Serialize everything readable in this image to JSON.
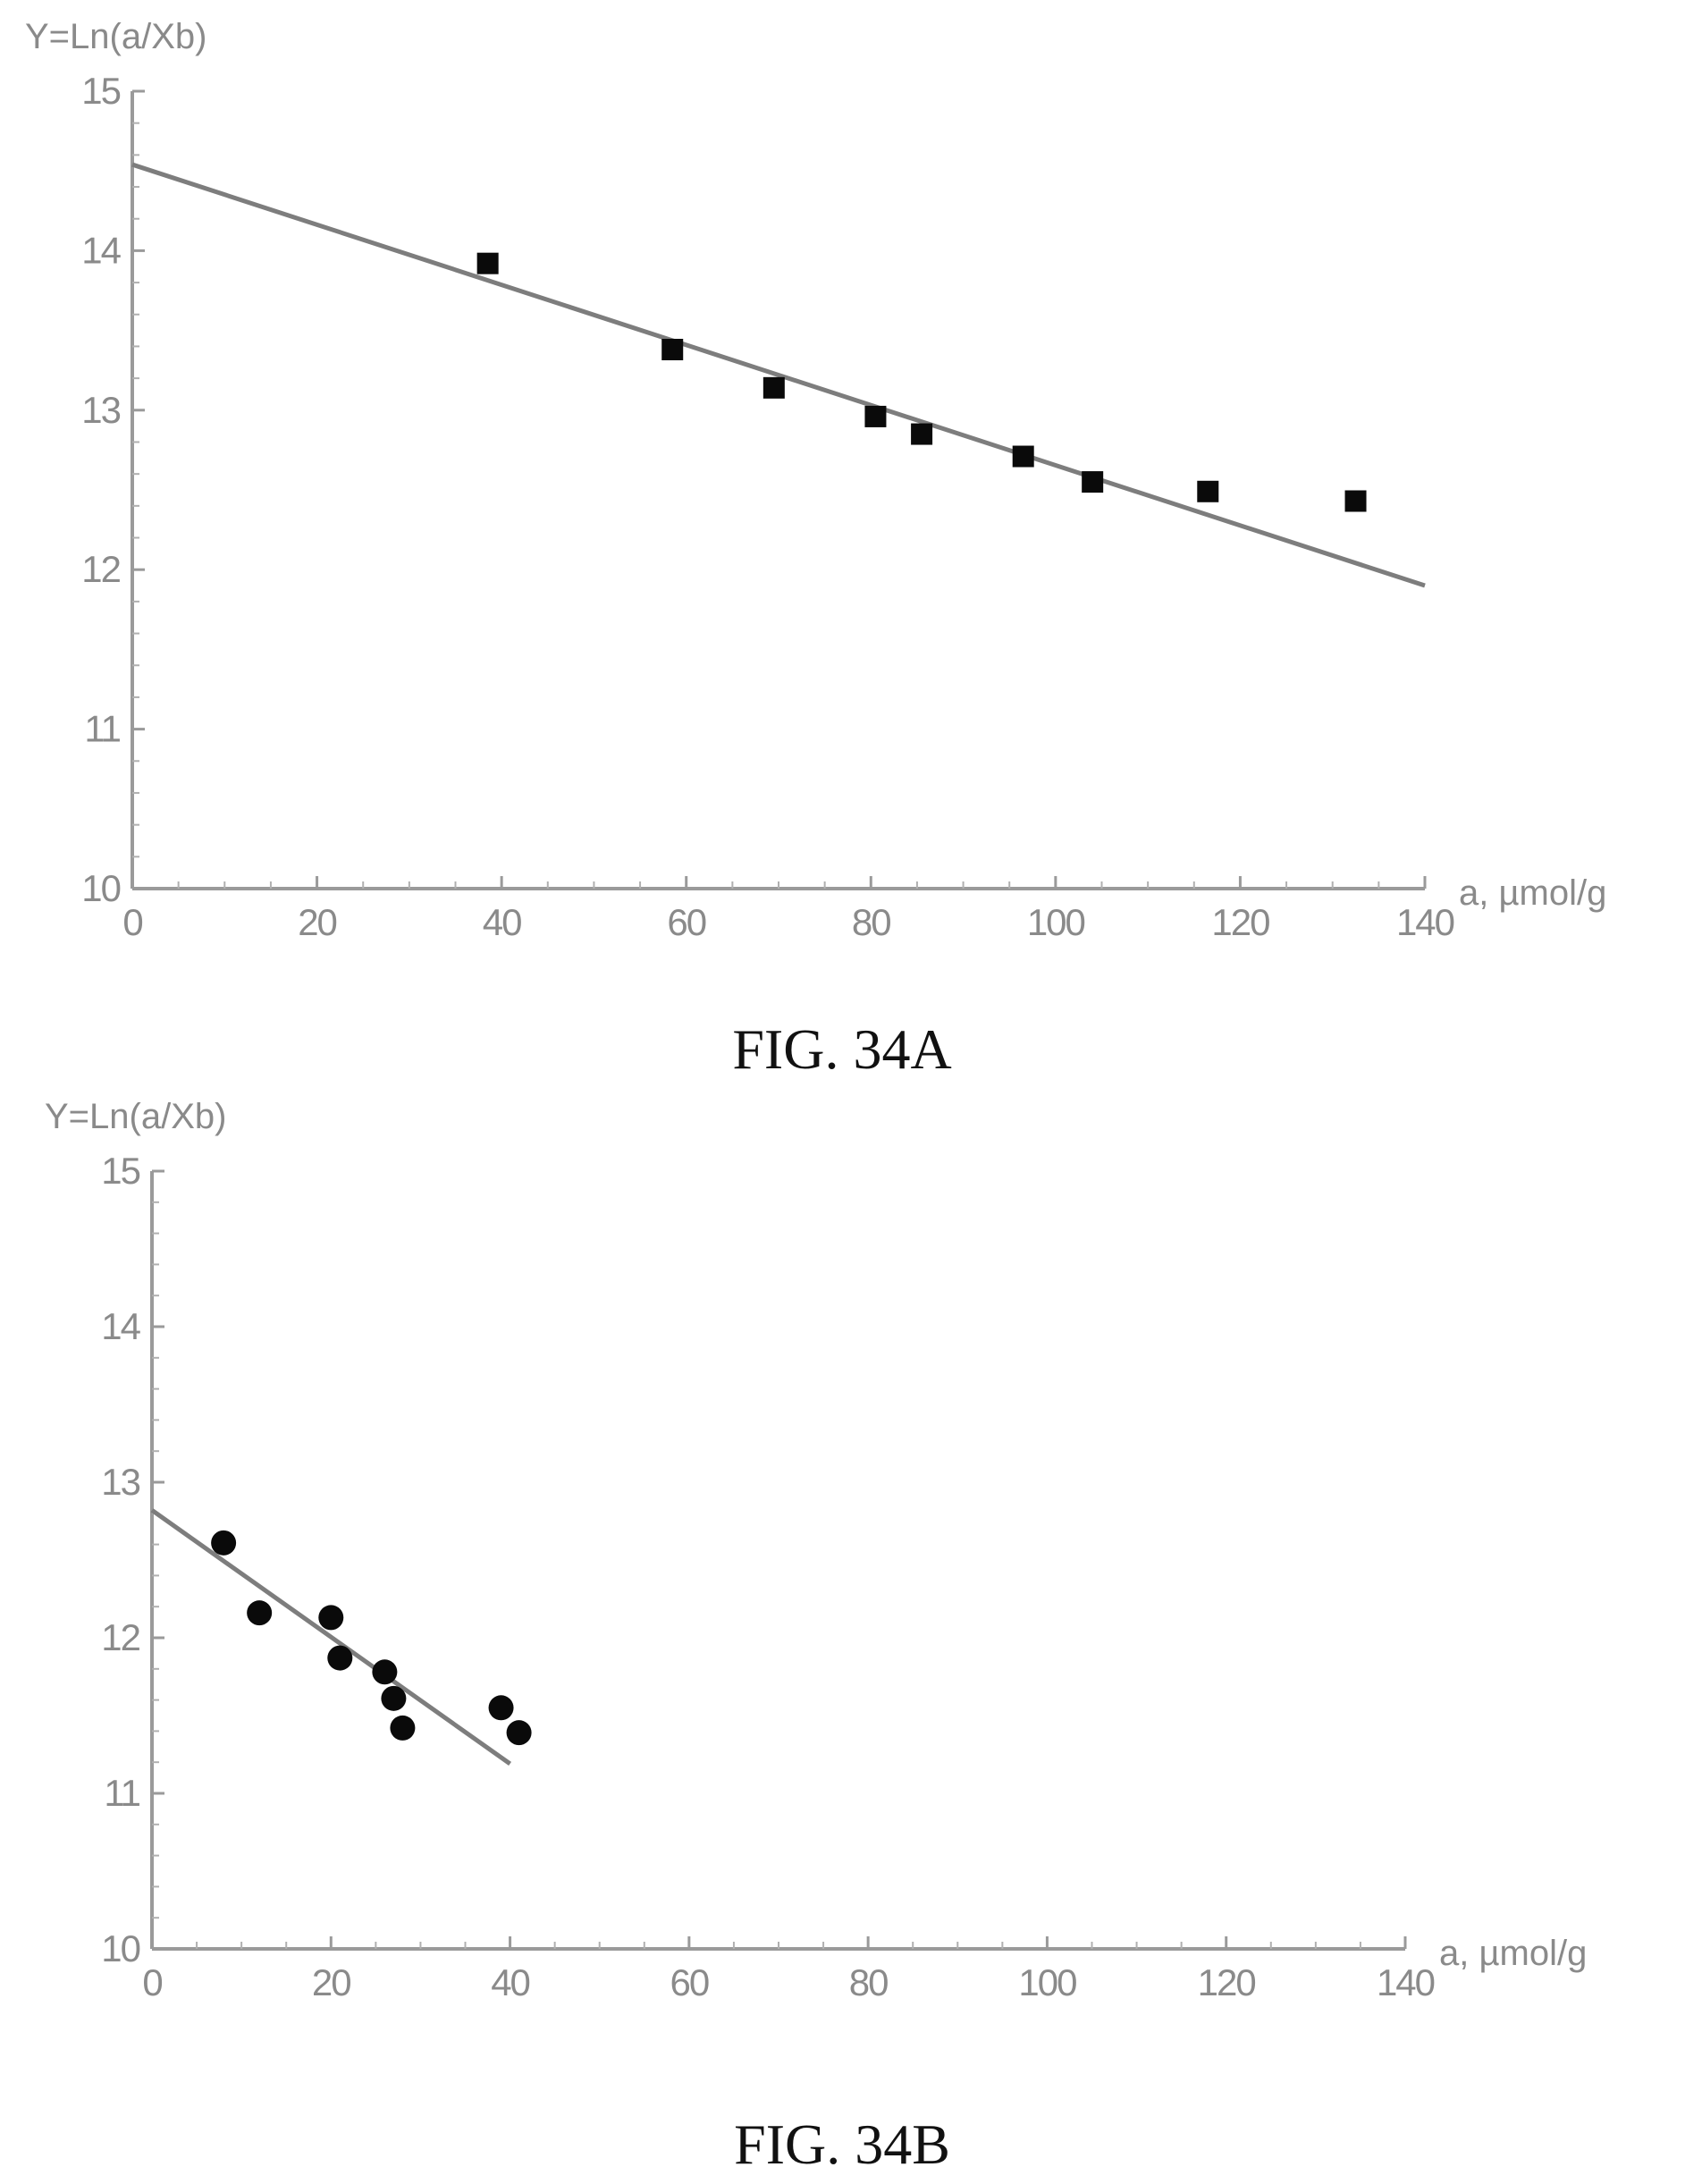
{
  "figure_a": {
    "caption": "FIG. 34A"
  },
  "figure_b": {
    "caption": "FIG. 34B"
  },
  "colors": {
    "marker": "#0a0a0a",
    "fit_line": "#7d7d7d",
    "axes": "#9a9a9a",
    "text": "#8a8a8a"
  },
  "chart_data": [
    {
      "type": "scatter",
      "caption": "FIG. 34A",
      "ylabel": "Y=Ln(a/Xb)",
      "xlabel": "a, µmol/g",
      "xlim": [
        0,
        140
      ],
      "ylim": [
        10,
        15
      ],
      "x_ticks": [
        "0",
        "20",
        "40",
        "60",
        "80",
        "100",
        "120",
        "140"
      ],
      "y_ticks": [
        "10",
        "11",
        "12",
        "13",
        "14",
        "15"
      ],
      "marker": "square",
      "grid": false,
      "series": [
        {
          "points": [
            {
              "x": 38.5,
              "y": 13.92
            },
            {
              "x": 58.5,
              "y": 13.38
            },
            {
              "x": 69.5,
              "y": 13.14
            },
            {
              "x": 80.5,
              "y": 12.96
            },
            {
              "x": 85.5,
              "y": 12.85
            },
            {
              "x": 96.5,
              "y": 12.71
            },
            {
              "x": 104,
              "y": 12.55
            },
            {
              "x": 116.5,
              "y": 12.49
            },
            {
              "x": 132.5,
              "y": 12.43
            }
          ]
        }
      ],
      "fit_line": {
        "x": [
          0,
          140
        ],
        "y": [
          14.54,
          11.9
        ]
      }
    },
    {
      "type": "scatter",
      "caption": "FIG. 34B",
      "ylabel": "Y=Ln(a/Xb)",
      "xlabel": "a, µmol/g",
      "xlim": [
        0,
        140
      ],
      "ylim": [
        10,
        15
      ],
      "x_ticks": [
        "0",
        "20",
        "40",
        "60",
        "80",
        "100",
        "120",
        "140"
      ],
      "y_ticks": [
        "10",
        "11",
        "12",
        "13",
        "14",
        "15"
      ],
      "marker": "circle",
      "grid": false,
      "series": [
        {
          "points": [
            {
              "x": 8,
              "y": 12.61
            },
            {
              "x": 12,
              "y": 12.16
            },
            {
              "x": 20,
              "y": 12.13
            },
            {
              "x": 21,
              "y": 11.87
            },
            {
              "x": 26,
              "y": 11.78
            },
            {
              "x": 27,
              "y": 11.61
            },
            {
              "x": 28,
              "y": 11.42
            },
            {
              "x": 39,
              "y": 11.55
            },
            {
              "x": 41,
              "y": 11.39
            }
          ]
        }
      ],
      "fit_line": {
        "x": [
          0,
          40
        ],
        "y": [
          12.82,
          11.19
        ]
      }
    }
  ]
}
